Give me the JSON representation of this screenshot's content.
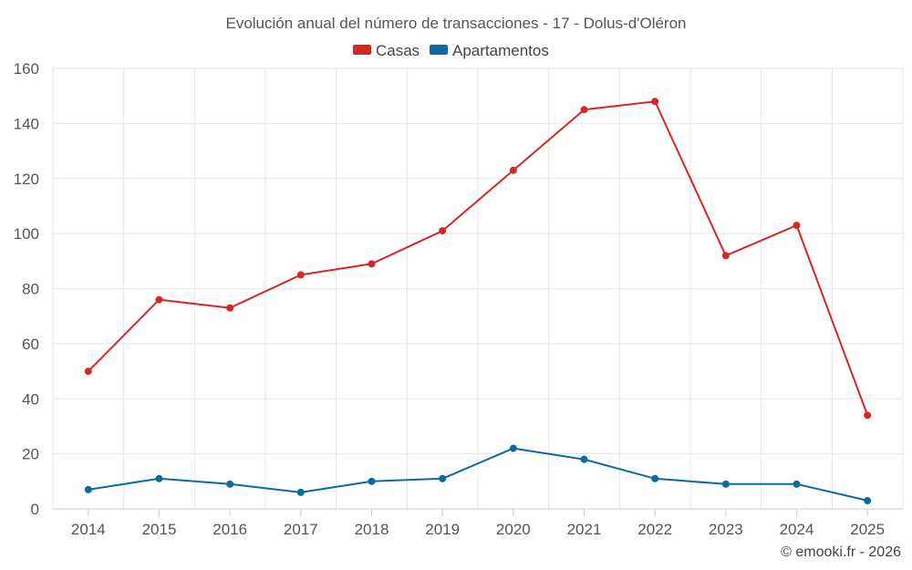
{
  "chart_data": {
    "type": "line",
    "title": "Evolución anual del número de transacciones - 17 - Dolus-d'Oléron",
    "categories": [
      "2014",
      "2015",
      "2016",
      "2017",
      "2018",
      "2019",
      "2020",
      "2021",
      "2022",
      "2023",
      "2024",
      "2025"
    ],
    "ylim": [
      0,
      160
    ],
    "yticks": [
      0,
      20,
      40,
      60,
      80,
      100,
      120,
      140,
      160
    ],
    "grid": true,
    "legend_position": "top-center",
    "series": [
      {
        "name": "Casas",
        "color": "#d62728",
        "values": [
          50,
          76,
          73,
          85,
          89,
          101,
          123,
          145,
          148,
          92,
          103,
          34
        ]
      },
      {
        "name": "Apartamentos",
        "color": "#0a6aa1",
        "values": [
          7,
          11,
          9,
          6,
          10,
          11,
          22,
          18,
          11,
          9,
          9,
          3
        ]
      }
    ],
    "xlabel": "",
    "ylabel": ""
  },
  "credit": "© emooki.fr - 2026"
}
